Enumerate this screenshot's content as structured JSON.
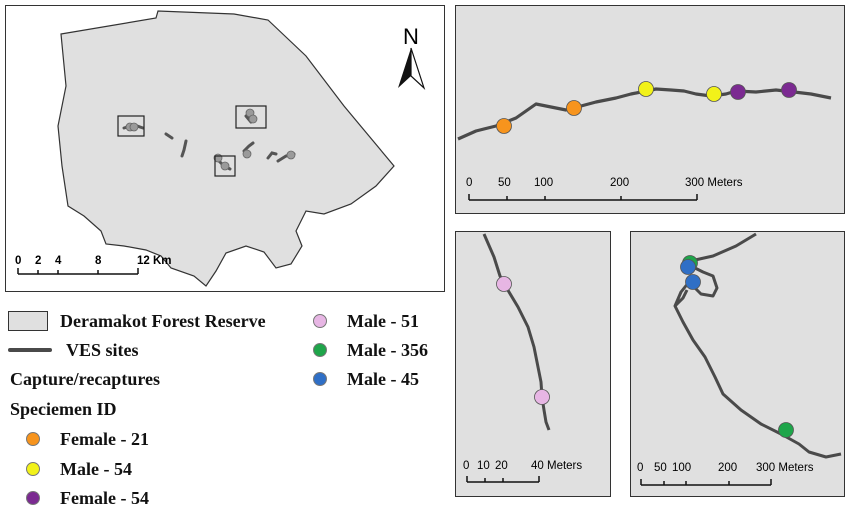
{
  "colors": {
    "female_21": "#f7941d",
    "male_54": "#f2f21a",
    "female_54": "#7b2a91",
    "male_51": "#e7b6e4",
    "male_356": "#1ea54a",
    "male_45": "#2f6fc6",
    "reserve_fill": "#e0e0e0",
    "ves_line": "#4a4a4a"
  },
  "overview_map": {
    "north_label": "N",
    "scale": {
      "ticks": [
        "0",
        "2",
        "4",
        "8",
        "12 Km"
      ]
    }
  },
  "inset_top": {
    "scale": {
      "ticks": [
        "0",
        "50",
        "100",
        "200",
        "300 Meters"
      ]
    },
    "points": [
      "female_21",
      "female_21",
      "male_54",
      "male_54",
      "female_54",
      "female_54"
    ]
  },
  "inset_bottom_left": {
    "scale": {
      "ticks": [
        "0",
        "10",
        "20",
        "40 Meters"
      ]
    },
    "points": [
      "male_51",
      "male_51"
    ]
  },
  "inset_bottom_right": {
    "scale": {
      "ticks": [
        "0",
        "50",
        "100",
        "200",
        "300 Meters"
      ]
    },
    "points": [
      "male_356",
      "male_45",
      "male_45",
      "male_356"
    ]
  },
  "legend": {
    "reserve": "Deramakot Forest Reserve",
    "ves": "VES sites",
    "capture_heading": "Capture/recaptures",
    "specimen_heading": "Speciemen ID",
    "items": [
      {
        "label": "Female - 21",
        "color_key": "female_21"
      },
      {
        "label": "Male - 54",
        "color_key": "male_54"
      },
      {
        "label": "Female - 54",
        "color_key": "female_54"
      },
      {
        "label": "Male - 51",
        "color_key": "male_51"
      },
      {
        "label": "Male - 356",
        "color_key": "male_356"
      },
      {
        "label": "Male - 45",
        "color_key": "male_45"
      }
    ]
  }
}
